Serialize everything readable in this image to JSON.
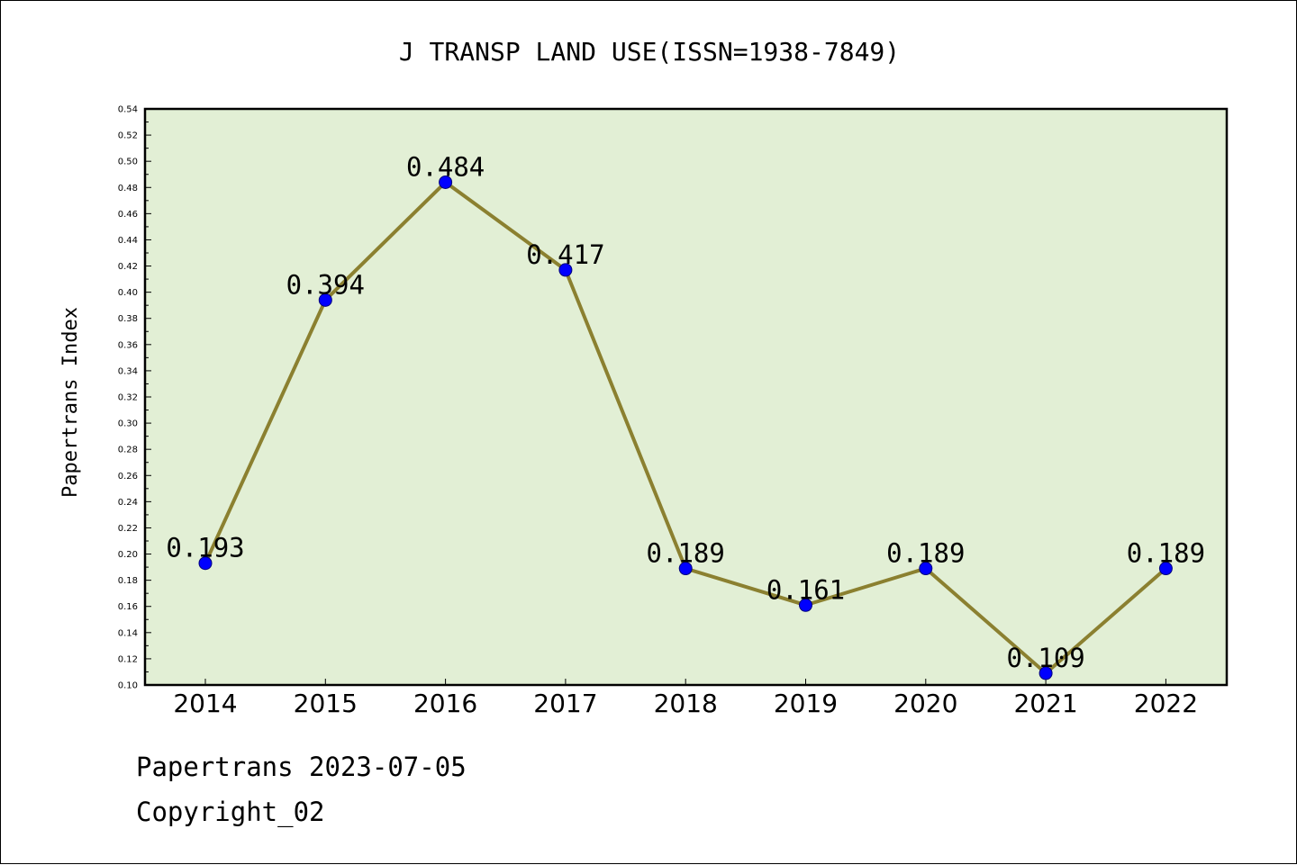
{
  "footer": {
    "source": "Papertrans 2023-07-05",
    "copyright": "Copyright_02"
  },
  "chart_data": {
    "type": "line",
    "title": "J TRANSP LAND USE(ISSN=1938-7849)",
    "xlabel": "",
    "ylabel": "Papertrans Index",
    "categories": [
      "2014",
      "2015",
      "2016",
      "2017",
      "2018",
      "2019",
      "2020",
      "2021",
      "2022"
    ],
    "series": [
      {
        "values": [
          0.193,
          0.394,
          0.484,
          0.417,
          0.189,
          0.161,
          0.189,
          0.109,
          0.189
        ],
        "data_labels": [
          "0.193",
          "0.394",
          "0.484",
          "0.417",
          "0.189",
          "0.161",
          "0.189",
          "0.109",
          "0.189"
        ]
      }
    ],
    "ylim": [
      0.1,
      0.54
    ],
    "yticks": [
      "0.10",
      "0.12",
      "0.14",
      "0.16",
      "0.18",
      "0.20",
      "0.22",
      "0.24",
      "0.26",
      "0.28",
      "0.30",
      "0.32",
      "0.34",
      "0.36",
      "0.38",
      "0.40",
      "0.42",
      "0.44",
      "0.46",
      "0.48",
      "0.50",
      "0.52",
      "0.54"
    ],
    "grid": false,
    "legend": "none",
    "colors": {
      "plot_background": "#e2efd5",
      "line": "#8b8030",
      "marker": "#0000ff",
      "axis": "#000000"
    }
  }
}
